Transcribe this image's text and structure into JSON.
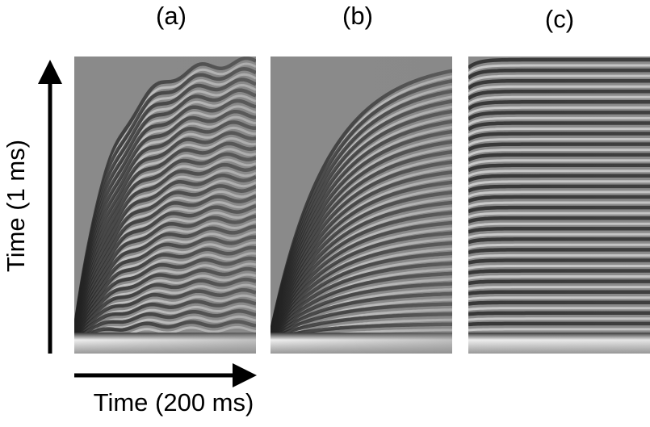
{
  "panels": [
    {
      "label": "(a)"
    },
    {
      "label": "(b)"
    },
    {
      "label": "(c)"
    }
  ],
  "y_axis": {
    "label": "Time (1 ms)"
  },
  "x_axis": {
    "label": "Time (200 ms)"
  }
}
